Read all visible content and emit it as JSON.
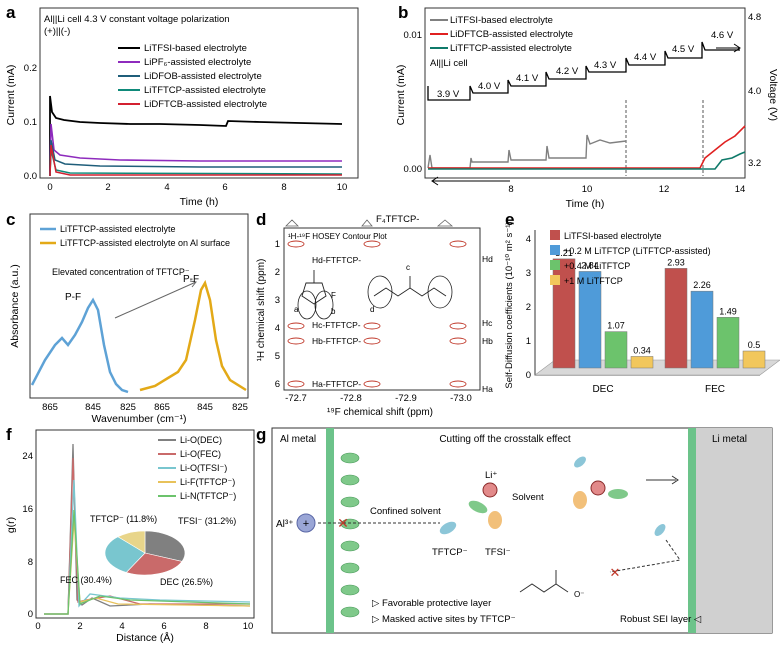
{
  "panel_letters": {
    "a": "a",
    "b": "b",
    "c": "c",
    "d": "d",
    "e": "e",
    "f": "f",
    "g": "g"
  },
  "panel_a": {
    "title_line1": "Al||Li cell 4.3 V constant voltage polarization",
    "title_line2": "(+)||(-)",
    "xlabel": "Time (h)",
    "ylabel": "Current (mA)",
    "xticks": [
      "0",
      "2",
      "4",
      "6",
      "8",
      "10"
    ],
    "yticks": [
      "0.0",
      "0.1",
      "0.2"
    ],
    "legend": [
      "LiTFSI-based electrolyte",
      "LiPF₆-assisted electrolyte",
      "LiDFOB-assisted electrolyte",
      "LiTFTCP-assisted electrolyte",
      "LiDFTCB-assisted electrolyte"
    ]
  },
  "panel_b": {
    "xlabel": "Time (h)",
    "ylabel_left": "Current (mA)",
    "ylabel_right": "Voltage (V)",
    "xticks": [
      "8",
      "10",
      "12",
      "14"
    ],
    "yticks_left": [
      "0.00",
      "0.01"
    ],
    "yticks_right": [
      "3.2",
      "4.0",
      "4.8"
    ],
    "legend": [
      "LiTFSI-based electrolyte",
      "LiDFTCB-assisted electrolyte",
      "LiTFTCP-assisted electrolyte"
    ],
    "cell_label": "Al||Li cell",
    "step_labels": [
      "3.9 V",
      "4.0 V",
      "4.1 V",
      "4.2 V",
      "4.3 V",
      "4.4 V",
      "4.5 V",
      "4.6 V"
    ]
  },
  "panel_c": {
    "xlabel": "Wavenumber (cm⁻¹)",
    "ylabel": "Absorbance (a.u.)",
    "legend": [
      "LiTFTCP-assisted electrolyte",
      "LiTFTCP-assisted electrolyte on Al surface"
    ],
    "annotation": "Elevated concentration of TFTCP⁻",
    "peak_label": "P-F",
    "xticks_left": [
      "865",
      "845",
      "825"
    ],
    "xticks_right": [
      "865",
      "845",
      "825"
    ]
  },
  "panel_d": {
    "title": "¹H-¹⁹F HOSEY Contour Plot",
    "xlabel": "¹⁹F chemical shift (ppm)",
    "ylabel": "¹H chemical shift (ppm)",
    "xticks": [
      "-72.7",
      "-72.8",
      "-72.9",
      "-73.0"
    ],
    "yticks": [
      "1",
      "2",
      "3",
      "4",
      "5",
      "6"
    ],
    "top_label": "F₄TFTCP-",
    "assignments": [
      "Hₐ-Fₜₒₜₒₘ-",
      "Hₑ-Fₜₒₜₒₘ-",
      "Hₒ-Fₜₒₜₒₘ-",
      "Hₐ-Fₜₒₜₒₘ-"
    ],
    "assign_text": [
      "Hd-FTFTCP-",
      "Hc-FTFTCP-",
      "Hb-FTFTCP-",
      "Ha-FTFTCP-"
    ],
    "right_labels": [
      "Hd",
      "Hc",
      "Hb",
      "Ha"
    ],
    "atom_labels": [
      "a",
      "b",
      "c",
      "d",
      "F"
    ]
  },
  "panel_e": {
    "ylabel": "Self-Diffusion coefficients (10⁻¹⁰ m² s⁻¹)",
    "yticks": [
      "0",
      "1",
      "2",
      "3",
      "4"
    ],
    "legend": [
      "LiTFSI-based electrolyte",
      "+0.2 M LiTFTCP (LiTFTCP-assisted)",
      "+0.4 M LiTFTCP",
      "+1 M LiTFTCP"
    ],
    "colors": [
      "#c0504d",
      "#4f9bd9",
      "#6cc36c",
      "#f2c75c"
    ]
  },
  "chart_data": [
    {
      "type": "bar",
      "categories": [
        "DEC",
        "FEC"
      ],
      "series": [
        {
          "name": "LiTFSI-based electrolyte",
          "values": [
            3.21,
            2.93
          ]
        },
        {
          "name": "+0.2 M LiTFTCP (LiTFTCP-assisted)",
          "values": [
            2.84,
            2.26
          ]
        },
        {
          "name": "+0.4 M LiTFTCP",
          "values": [
            1.07,
            1.49
          ]
        },
        {
          "name": "+1 M LiTFTCP",
          "values": [
            0.34,
            0.5
          ]
        }
      ],
      "ylim": [
        0,
        4
      ]
    },
    {
      "type": "pie",
      "labels": [
        "TFSI⁻ (31.2%)",
        "DEC (26.5%)",
        "FEC (30.4%)",
        "TFTCP⁻ (11.8%)"
      ],
      "values": [
        31.2,
        26.5,
        30.4,
        11.8
      ],
      "colors": [
        "#808080",
        "#c96a6a",
        "#79c6cf",
        "#e8d58a"
      ]
    }
  ],
  "panel_f": {
    "xlabel": "Distance (Å)",
    "ylabel": "g(r)",
    "xticks": [
      "0",
      "2",
      "4",
      "6",
      "8",
      "10"
    ],
    "yticks": [
      "0",
      "8",
      "16",
      "24"
    ],
    "legend": [
      "Li-O(DEC)",
      "Li-O(FEC)",
      "Li-O(TFSI⁻)",
      "Li-F(TFTCP⁻)",
      "Li-N(TFTCP⁻)"
    ],
    "colors": [
      "#808080",
      "#c96a6a",
      "#79c6cf",
      "#e8c25a",
      "#6cc36c"
    ]
  },
  "panel_g": {
    "title": "Cutting off the crosstalk effect",
    "al_metal": "Al metal",
    "li_metal": "Li metal",
    "al_ion": "Al³⁺",
    "confined": "Confined solvent",
    "li_plus": "Li⁺",
    "solvent": "Solvent",
    "tftcp": "TFTCP⁻",
    "tfsi": "TFSI⁻",
    "protective": "▷ Favorable protective layer",
    "masked": "▷ Masked active sites by TFTCP⁻",
    "sei": "Robust SEI layer ◁"
  }
}
